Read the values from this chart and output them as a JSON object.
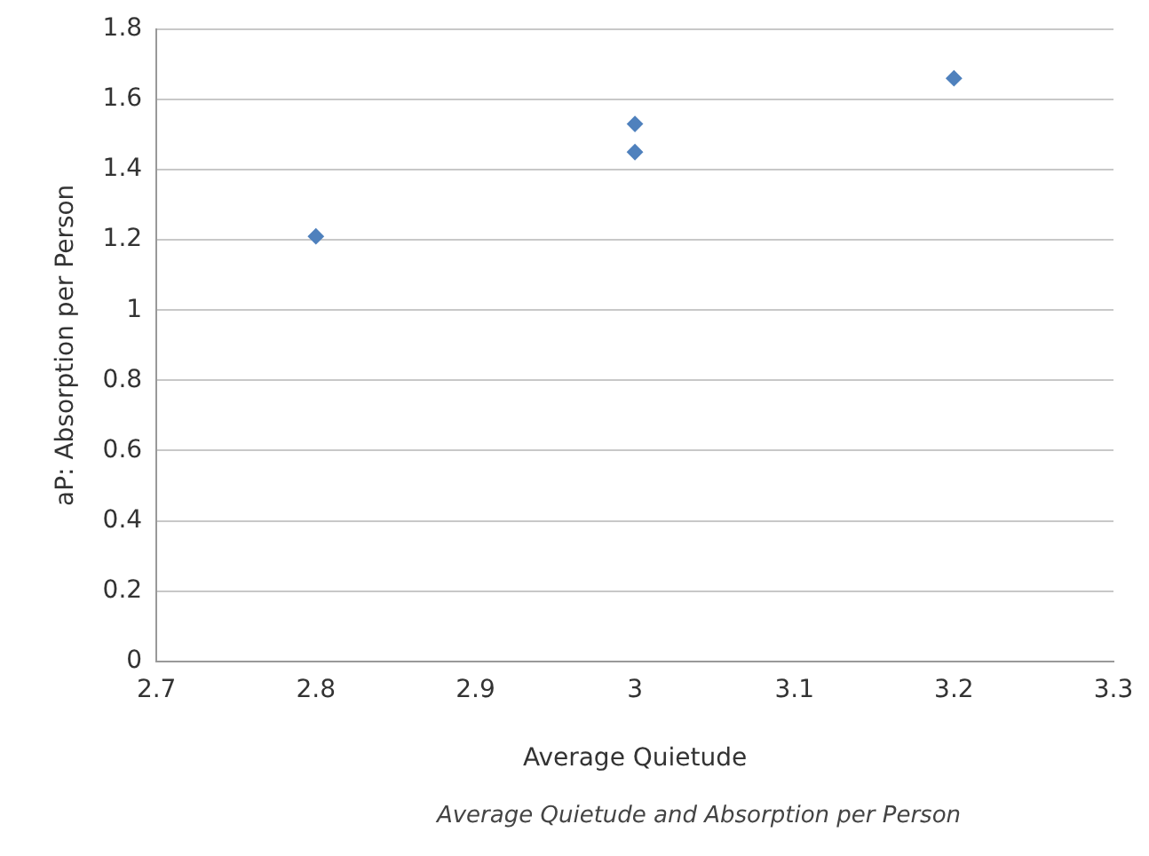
{
  "chart_data": {
    "type": "scatter",
    "xlabel": "Average Quietude",
    "ylabel": "aP: Absorption per Person",
    "annotations": [
      "Average Quietude and Absorption per Person"
    ],
    "series": [
      {
        "color": "#4f81bd",
        "x": [
          2.8,
          3.0,
          3.0,
          3.2
        ],
        "values": [
          1.21,
          1.53,
          1.45,
          1.66
        ]
      }
    ],
    "xlim": [
      2.7,
      3.3
    ],
    "xticks": [
      2.7,
      2.8,
      2.9,
      3,
      3.1,
      3.2,
      3.3
    ],
    "ylim": [
      0,
      1.8
    ],
    "yticks": [
      0,
      0.2,
      0.4,
      0.6,
      0.8,
      1,
      1.2,
      1.4,
      1.6,
      1.8
    ],
    "grid": "y",
    "legend": false,
    "marker": "diamond"
  }
}
